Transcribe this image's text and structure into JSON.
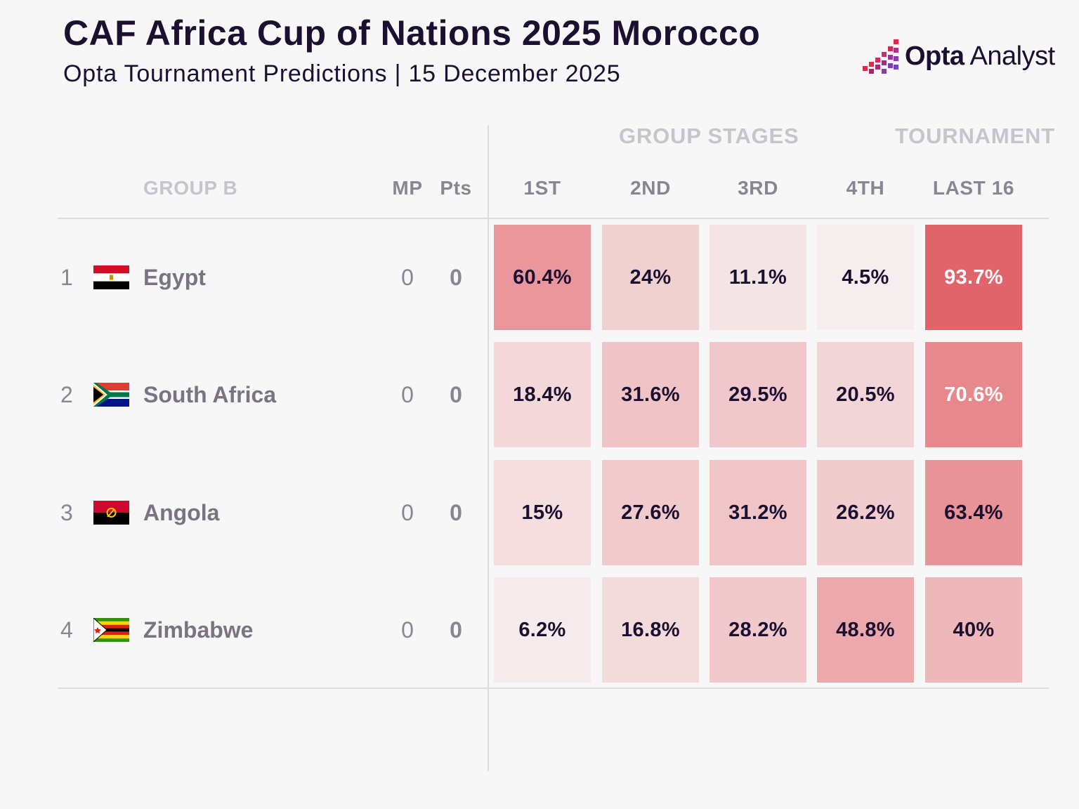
{
  "header": {
    "title": "CAF Africa Cup of Nations 2025 Morocco",
    "subtitle": "Opta Tournament Predictions | 15 December 2025"
  },
  "logo": {
    "brand": "Opta",
    "product": "Analyst",
    "icon": "opta-bars-icon"
  },
  "colors": {
    "cell_base": "#f7f5f5",
    "cell_full": "#e05a62",
    "text_dark": "#1b1030",
    "text_light": "#ffffff"
  },
  "table": {
    "group_label": "GROUP B",
    "sections": {
      "group_stages": "GROUP STAGES",
      "tournament": "TOURNAMENT"
    },
    "columns": {
      "mp": "MP",
      "pts": "Pts",
      "first": "1ST",
      "second": "2ND",
      "third": "3RD",
      "fourth": "4TH",
      "last16": "LAST 16"
    },
    "rows": [
      {
        "rank": "1",
        "team": "Egypt",
        "flag": "egypt-flag",
        "mp": "0",
        "pts": "0"
      },
      {
        "rank": "2",
        "team": "South Africa",
        "flag": "south-africa-flag",
        "mp": "0",
        "pts": "0"
      },
      {
        "rank": "3",
        "team": "Angola",
        "flag": "angola-flag",
        "mp": "0",
        "pts": "0"
      },
      {
        "rank": "4",
        "team": "Zimbabwe",
        "flag": "zimbabwe-flag",
        "mp": "0",
        "pts": "0"
      }
    ]
  },
  "chart_data": {
    "type": "heatmap",
    "title": "CAF Africa Cup of Nations 2025 Morocco",
    "subtitle": "Opta Tournament Predictions | 15 December 2025",
    "rows": [
      "Egypt",
      "South Africa",
      "Angola",
      "Zimbabwe"
    ],
    "columns": [
      "1ST",
      "2ND",
      "3RD",
      "4TH",
      "LAST 16"
    ],
    "column_groups": [
      {
        "name": "GROUP STAGES",
        "columns": [
          "1ST",
          "2ND",
          "3RD",
          "4TH"
        ]
      },
      {
        "name": "TOURNAMENT",
        "columns": [
          "LAST 16"
        ]
      }
    ],
    "values": [
      [
        60.4,
        24,
        11.1,
        4.5,
        93.7
      ],
      [
        18.4,
        31.6,
        29.5,
        20.5,
        70.6
      ],
      [
        15,
        27.6,
        31.2,
        26.2,
        63.4
      ],
      [
        6.2,
        16.8,
        28.2,
        48.8,
        40
      ]
    ],
    "labels": [
      [
        "60.4%",
        "24%",
        "11.1%",
        "4.5%",
        "93.7%"
      ],
      [
        "18.4%",
        "31.6%",
        "29.5%",
        "20.5%",
        "70.6%"
      ],
      [
        "15%",
        "27.6%",
        "31.2%",
        "26.2%",
        "63.4%"
      ],
      [
        "6.2%",
        "16.8%",
        "28.2%",
        "48.8%",
        "40%"
      ]
    ],
    "unit": "%",
    "range": [
      0,
      100
    ]
  }
}
